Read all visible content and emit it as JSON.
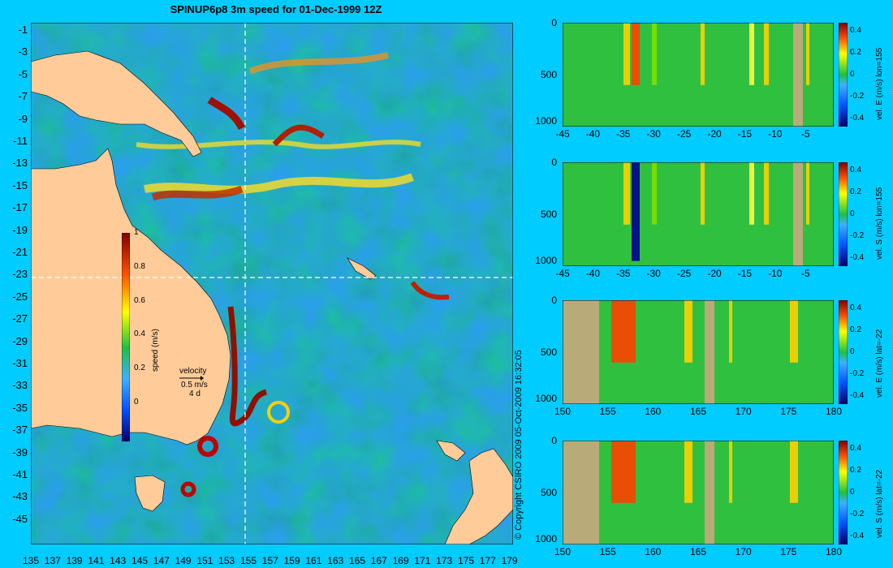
{
  "title": "SPINUP6p8 3m speed for 01-Dec-1999 12Z",
  "copyright": "© Copyright CSIRO 2009   05-Oct-2009 16:32:05",
  "map": {
    "lat_ticks": [
      "-1",
      "-3",
      "-5",
      "-7",
      "-9",
      "-11",
      "-13",
      "-15",
      "-17",
      "-19",
      "-21",
      "-23",
      "-25",
      "-27",
      "-29",
      "-31",
      "-33",
      "-35",
      "-37",
      "-39",
      "-41",
      "-43",
      "-45"
    ],
    "lon_ticks": [
      "135",
      "137",
      "139",
      "141",
      "143",
      "145",
      "147",
      "149",
      "151",
      "153",
      "155",
      "157",
      "159",
      "161",
      "163",
      "165",
      "167",
      "169",
      "171",
      "173",
      "175",
      "177",
      "179"
    ],
    "colorbar": {
      "label": "speed (m/s)",
      "ticks": [
        "1",
        "0.8",
        "0.6",
        "0.4",
        "0.2",
        "0"
      ]
    },
    "velocity_key": {
      "title": "velocity",
      "speed": "0.5 m/s",
      "days": "4 d"
    }
  },
  "sections": [
    {
      "label": "vel. E (m/s) lon=155",
      "depth_ticks": [
        "0",
        "500",
        "1000"
      ],
      "x_ticks": [
        "-45",
        "-40",
        "-35",
        "-30",
        "-25",
        "-20",
        "-15",
        "-10",
        "-5"
      ],
      "cb_ticks": [
        "0.4",
        "0.2",
        "0",
        "-0.2",
        "-0.4"
      ]
    },
    {
      "label": "vel. S (m/s) lon=155",
      "depth_ticks": [
        "0",
        "500",
        "1000"
      ],
      "x_ticks": [
        "-45",
        "-40",
        "-35",
        "-30",
        "-25",
        "-20",
        "-15",
        "-10",
        "-5"
      ],
      "cb_ticks": [
        "0.4",
        "0.2",
        "0",
        "-0.2",
        "-0.4"
      ]
    },
    {
      "label": "vel. E (m/s) lat=-22",
      "depth_ticks": [
        "0",
        "500",
        "1000"
      ],
      "x_ticks": [
        "150",
        "155",
        "160",
        "165",
        "170",
        "175",
        "180"
      ],
      "cb_ticks": [
        "0.4",
        "0.2",
        "0",
        "-0.2",
        "-0.4"
      ]
    },
    {
      "label": "vel. S (m/s) lat=-22",
      "depth_ticks": [
        "0",
        "500",
        "1000"
      ],
      "x_ticks": [
        "150",
        "155",
        "160",
        "165",
        "170",
        "175",
        "180"
      ],
      "cb_ticks": [
        "0.4",
        "0.2",
        "0",
        "-0.2",
        "-0.4"
      ]
    }
  ]
}
